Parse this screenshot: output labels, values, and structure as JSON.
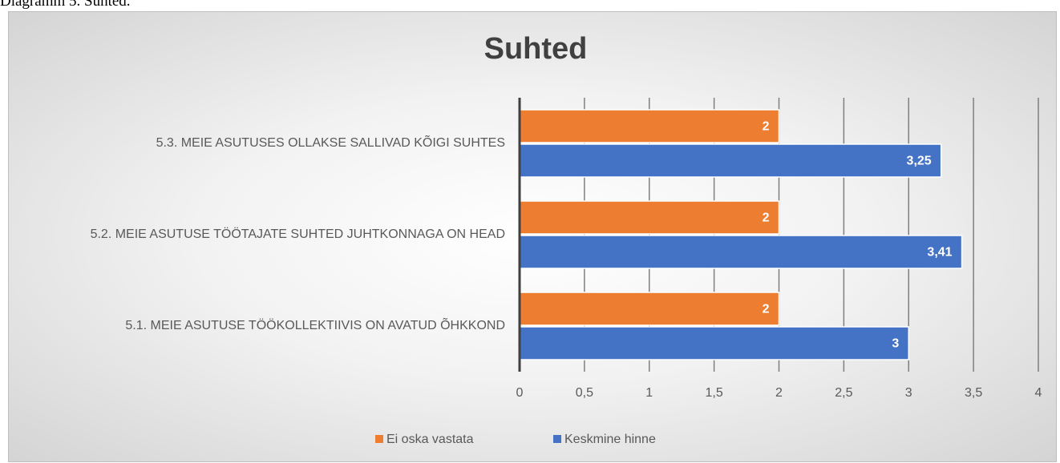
{
  "caption": "Diagramm 5. Suhted.",
  "chart_data": {
    "type": "bar",
    "orientation": "horizontal",
    "title": "Suhted",
    "categories": [
      "5.1. MEIE ASUTUSE TÖÖKOLLEKTIIVIS ON AVATUD ÕHKKOND",
      "5.2. MEIE ASUTUSE TÖÖTAJATE SUHTED JUHTKONNAGA ON HEAD",
      "5.3. MEIE ASUTUSES OLLAKSE SALLIVAD KÕIGI SUHTES"
    ],
    "series": [
      {
        "name": "Ei oska vastata",
        "color": "#ed7d31",
        "values": [
          2,
          2,
          2
        ],
        "value_labels": [
          "2",
          "2",
          "2"
        ]
      },
      {
        "name": "Keskmine hinne",
        "color": "#4472c4",
        "values": [
          3,
          3.41,
          3.25
        ],
        "value_labels": [
          "3",
          "3,41",
          "3,25"
        ]
      }
    ],
    "xlim": [
      0,
      4
    ],
    "xticks": [
      0,
      {
        "value": 0.5,
        "label": "0,5"
      },
      1,
      {
        "value": 1.5,
        "label": "1,5"
      },
      2,
      {
        "value": 2.5,
        "label": "2,5"
      },
      3,
      {
        "value": 3.5,
        "label": "3,5"
      },
      4
    ],
    "grid": true,
    "legend": "bottom"
  }
}
